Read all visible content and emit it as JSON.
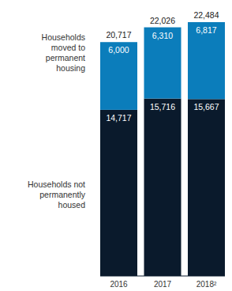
{
  "chart_data": {
    "type": "bar",
    "stacked": true,
    "data_labels": true,
    "tick_labels": "x",
    "categories": [
      "2016",
      "2017",
      "2018²"
    ],
    "series": [
      {
        "name": "Households not permanently housed",
        "color": "#0a1a2c",
        "values": [
          14717,
          15716,
          15667
        ],
        "value_labels": [
          "14,717",
          "15,716",
          "15,667"
        ]
      },
      {
        "name": "Households moved to permanent housing",
        "color": "#0b7dbb",
        "values": [
          6000,
          6310,
          6817
        ],
        "value_labels": [
          "6,000",
          "6,310",
          "6,817"
        ]
      }
    ],
    "totals": [
      20717,
      22026,
      22484
    ],
    "total_labels": [
      "20,717",
      "22,026",
      "22,484"
    ],
    "ylim": [
      0,
      22484
    ],
    "yticks": []
  }
}
